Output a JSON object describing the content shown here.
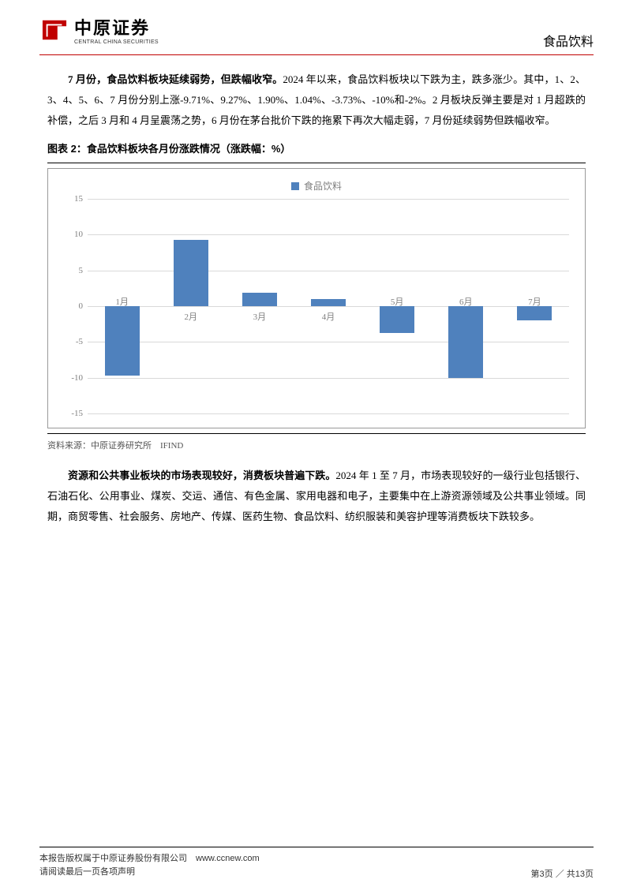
{
  "header": {
    "logo_cn": "中原证券",
    "logo_en": "CENTRAL CHINA SECURITIES",
    "sector": "食品饮料"
  },
  "para1_bold": "7 月份，食品饮料板块延续弱势，但跌幅收窄。",
  "para1_rest": "2024 年以来，食品饮料板块以下跌为主，跌多涨少。其中，1、2、3、4、5、6、7 月份分别上涨-9.71%、9.27%、1.90%、1.04%、-3.73%、-10%和-2%。2 月板块反弹主要是对 1 月超跌的补偿，之后 3 月和 4 月呈震荡之势，6 月份在茅台批价下跌的拖累下再次大幅走弱，7 月份延续弱势但跌幅收窄。",
  "chart": {
    "title": "图表 2：食品饮料板块各月份涨跌情况（涨跌幅：%）",
    "legend_label": "食品饮料",
    "type": "bar",
    "categories": [
      "1月",
      "2月",
      "3月",
      "4月",
      "5月",
      "6月",
      "7月"
    ],
    "values": [
      -9.71,
      9.27,
      1.9,
      1.04,
      -3.73,
      -10.0,
      -2.0
    ],
    "bar_color": "#4f81bd",
    "ylim": [
      -15,
      15
    ],
    "ytick_step": 5,
    "grid_color": "#d9d9d9",
    "axis_label_color": "#7f7f7f",
    "background_color": "#ffffff",
    "source": "资料来源：中原证券研究所　IFIND"
  },
  "para2_bold": "资源和公共事业板块的市场表现较好，消费板块普遍下跌。",
  "para2_rest": "2024 年 1 至 7 月，市场表现较好的一级行业包括银行、石油石化、公用事业、煤炭、交运、通信、有色金属、家用电器和电子，主要集中在上游资源领域及公共事业领域。同期，商贸零售、社会服务、房地产、传媒、医药生物、食品饮料、纺织服装和美容护理等消费板块下跌较多。",
  "footer": {
    "line1": "本报告版权属于中原证券股份有限公司　www.ccnew.com",
    "line2": "请阅读最后一页各项声明",
    "page": "第3页 ／ 共13页"
  }
}
